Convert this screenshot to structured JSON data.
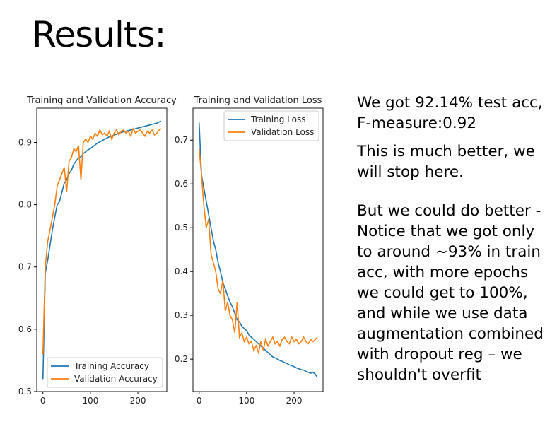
{
  "slide": {
    "title": "Results:"
  },
  "notes": {
    "p1": "We got 92.14% test acc, F-measure:0.92",
    "p2": "This is much better, we will stop here.",
    "p3": "But we could do better - Notice that we got only to around ~93% in train acc, with more epochs we could get to 100%, and while we use data augmentation combined with dropout reg – we shouldn't overfit"
  },
  "colors": {
    "training": "#1f77b4",
    "validation": "#ff7f0e"
  },
  "chart_data": [
    {
      "type": "line",
      "title": "Training and Validation Accuracy",
      "xlabel": "",
      "ylabel": "",
      "xlim": [
        -13,
        261
      ],
      "ylim": [
        0.5,
        0.955
      ],
      "xticks": [
        0,
        100,
        200
      ],
      "xtick_labels": [
        "0",
        "100",
        "200"
      ],
      "yticks": [
        0.5,
        0.6,
        0.7,
        0.8,
        0.9
      ],
      "ytick_labels": [
        "0.5",
        "0.6",
        "0.7",
        "0.8",
        "0.9"
      ],
      "legend": "bottom-right",
      "x": [
        0,
        5,
        10,
        15,
        20,
        25,
        30,
        35,
        40,
        45,
        50,
        55,
        60,
        65,
        70,
        75,
        80,
        85,
        90,
        95,
        100,
        105,
        110,
        115,
        120,
        125,
        130,
        135,
        140,
        145,
        150,
        155,
        160,
        165,
        170,
        175,
        180,
        185,
        190,
        195,
        200,
        205,
        210,
        215,
        220,
        225,
        230,
        235,
        240,
        245,
        249
      ],
      "series": [
        {
          "name": "Training Accuracy",
          "color_key": "training",
          "values": [
            0.52,
            0.69,
            0.71,
            0.735,
            0.76,
            0.78,
            0.8,
            0.805,
            0.82,
            0.835,
            0.84,
            0.85,
            0.855,
            0.865,
            0.87,
            0.875,
            0.877,
            0.882,
            0.885,
            0.888,
            0.89,
            0.893,
            0.896,
            0.899,
            0.901,
            0.903,
            0.905,
            0.907,
            0.909,
            0.91,
            0.912,
            0.913,
            0.915,
            0.916,
            0.917,
            0.918,
            0.919,
            0.92,
            0.921,
            0.922,
            0.923,
            0.924,
            0.925,
            0.926,
            0.927,
            0.928,
            0.929,
            0.93,
            0.931,
            0.933,
            0.934
          ]
        },
        {
          "name": "Validation Accuracy",
          "color_key": "validation",
          "values": [
            0.56,
            0.7,
            0.74,
            0.76,
            0.78,
            0.8,
            0.83,
            0.84,
            0.85,
            0.86,
            0.82,
            0.87,
            0.875,
            0.89,
            0.885,
            0.895,
            0.84,
            0.9,
            0.905,
            0.9,
            0.91,
            0.905,
            0.915,
            0.91,
            0.92,
            0.912,
            0.915,
            0.91,
            0.918,
            0.905,
            0.915,
            0.92,
            0.912,
            0.918,
            0.92,
            0.915,
            0.918,
            0.91,
            0.922,
            0.915,
            0.918,
            0.92,
            0.915,
            0.91,
            0.918,
            0.915,
            0.92,
            0.912,
            0.915,
            0.92,
            0.922
          ]
        }
      ]
    },
    {
      "type": "line",
      "title": "Training and Validation Loss",
      "xlabel": "",
      "ylabel": "",
      "xlim": [
        -13,
        261
      ],
      "ylim": [
        0.126,
        0.773
      ],
      "xticks": [
        0,
        100,
        200
      ],
      "xtick_labels": [
        "0",
        "100",
        "200"
      ],
      "yticks": [
        0.2,
        0.3,
        0.4,
        0.5,
        0.6,
        0.7
      ],
      "ytick_labels": [
        "0.2",
        "0.3",
        "0.4",
        "0.5",
        "0.6",
        "0.7"
      ],
      "legend": "top-right",
      "x": [
        0,
        5,
        10,
        15,
        20,
        25,
        30,
        35,
        40,
        45,
        50,
        55,
        60,
        65,
        70,
        75,
        80,
        85,
        90,
        95,
        100,
        105,
        110,
        115,
        120,
        125,
        130,
        135,
        140,
        145,
        150,
        155,
        160,
        165,
        170,
        175,
        180,
        185,
        190,
        195,
        200,
        205,
        210,
        215,
        220,
        225,
        230,
        235,
        240,
        245,
        249
      ],
      "series": [
        {
          "name": "Training Loss",
          "color_key": "training",
          "values": [
            0.74,
            0.62,
            0.59,
            0.56,
            0.53,
            0.5,
            0.47,
            0.45,
            0.42,
            0.4,
            0.375,
            0.36,
            0.345,
            0.33,
            0.32,
            0.305,
            0.29,
            0.285,
            0.275,
            0.27,
            0.265,
            0.255,
            0.25,
            0.245,
            0.24,
            0.235,
            0.23,
            0.225,
            0.22,
            0.215,
            0.21,
            0.205,
            0.203,
            0.2,
            0.197,
            0.195,
            0.192,
            0.19,
            0.187,
            0.185,
            0.183,
            0.18,
            0.178,
            0.176,
            0.175,
            0.172,
            0.17,
            0.168,
            0.17,
            0.165,
            0.158
          ]
        },
        {
          "name": "Validation Loss",
          "color_key": "validation",
          "values": [
            0.68,
            0.62,
            0.55,
            0.5,
            0.52,
            0.44,
            0.42,
            0.4,
            0.36,
            0.35,
            0.38,
            0.31,
            0.33,
            0.3,
            0.29,
            0.26,
            0.33,
            0.25,
            0.26,
            0.24,
            0.25,
            0.235,
            0.24,
            0.22,
            0.23,
            0.215,
            0.24,
            0.22,
            0.245,
            0.23,
            0.24,
            0.25,
            0.235,
            0.24,
            0.23,
            0.245,
            0.25,
            0.24,
            0.235,
            0.25,
            0.24,
            0.245,
            0.235,
            0.24,
            0.25,
            0.24,
            0.235,
            0.245,
            0.24,
            0.245,
            0.25
          ]
        }
      ]
    }
  ]
}
